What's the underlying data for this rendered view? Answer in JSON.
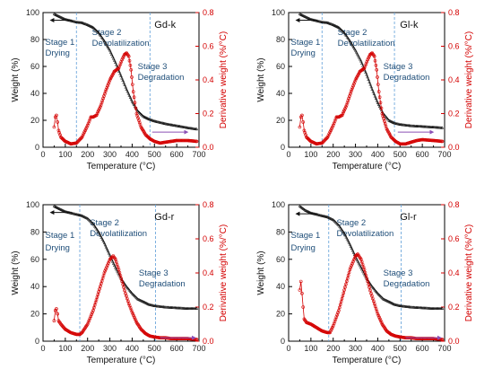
{
  "figure": {
    "colors": {
      "weight": "#111111",
      "derivative": "#d40000",
      "stage_lines": "#6fa8dc",
      "stage_text": "#1f4e79",
      "arrow_weight": "#111111",
      "arrow_derivative": "#8b4fb5",
      "axis": "#000000"
    }
  },
  "chart_data": [
    {
      "type": "line",
      "title": "Gd-k",
      "xlabel": "Temperature (°C)",
      "ylabel": "Weight (%)",
      "y2label": "Derivative weight (%/°C)",
      "xlim": [
        0,
        700
      ],
      "ylim": [
        0,
        100
      ],
      "y2lim": [
        0,
        0.8
      ],
      "xticks": [
        "0",
        "100",
        "200",
        "300",
        "400",
        "500",
        "600",
        "700"
      ],
      "yticks": [
        "0",
        "20",
        "40",
        "60",
        "80",
        "100"
      ],
      "y2ticks": [
        "0.0",
        "0.2",
        "0.4",
        "0.6",
        "0.8"
      ],
      "stage_boundaries": [
        150,
        480
      ],
      "stage_labels": [
        {
          "line1": "Stage 1",
          "line2": "Drying"
        },
        {
          "line1": "Stage 2",
          "line2": "Devolatilization"
        },
        {
          "line1": "Stage 3",
          "line2": "Degradation"
        }
      ],
      "series": [
        {
          "axis": "left",
          "x": [
            50,
            75,
            100,
            125,
            150,
            175,
            200,
            225,
            250,
            275,
            300,
            325,
            350,
            375,
            400,
            425,
            450,
            475,
            500,
            550,
            600,
            650,
            690
          ],
          "y": [
            99,
            97,
            95,
            94,
            93,
            92.5,
            91,
            89,
            85,
            79,
            72,
            63,
            53,
            43,
            34,
            27,
            23,
            21,
            19.5,
            17.5,
            16,
            14.5,
            13.5
          ]
        },
        {
          "axis": "right",
          "x": [
            50,
            55,
            60,
            65,
            70,
            80,
            100,
            125,
            150,
            175,
            200,
            215,
            225,
            240,
            260,
            280,
            300,
            320,
            340,
            355,
            365,
            375,
            385,
            395,
            405,
            420,
            440,
            460,
            480,
            500,
            525,
            550,
            575,
            600,
            650,
            690
          ],
          "y": [
            0.12,
            0.18,
            0.19,
            0.15,
            0.1,
            0.06,
            0.035,
            0.02,
            0.025,
            0.06,
            0.13,
            0.18,
            0.18,
            0.19,
            0.25,
            0.33,
            0.4,
            0.45,
            0.47,
            0.52,
            0.55,
            0.56,
            0.54,
            0.46,
            0.33,
            0.2,
            0.12,
            0.075,
            0.05,
            0.035,
            0.025,
            0.03,
            0.035,
            0.04,
            0.04,
            0.035
          ]
        }
      ]
    },
    {
      "type": "line",
      "title": "Gl-k",
      "xlabel": "Temperature (°C)",
      "ylabel": "Weight (%)",
      "y2label": "Derivative weight (%/°C)",
      "xlim": [
        0,
        700
      ],
      "ylim": [
        0,
        100
      ],
      "y2lim": [
        0,
        0.8
      ],
      "xticks": [
        "0",
        "100",
        "200",
        "300",
        "400",
        "500",
        "600",
        "700"
      ],
      "yticks": [
        "0",
        "20",
        "40",
        "60",
        "80",
        "100"
      ],
      "y2ticks": [
        "0.0",
        "0.2",
        "0.4",
        "0.6",
        "0.8"
      ],
      "stage_boundaries": [
        150,
        475
      ],
      "stage_labels": [
        {
          "line1": "Stage 1",
          "line2": "Drying"
        },
        {
          "line1": "Stage 2",
          "line2": "Devolatilization"
        },
        {
          "line1": "Stage 3",
          "line2": "Degradation"
        }
      ],
      "series": [
        {
          "axis": "left",
          "x": [
            50,
            75,
            100,
            125,
            150,
            175,
            200,
            225,
            250,
            275,
            300,
            325,
            350,
            375,
            400,
            425,
            450,
            475,
            500,
            550,
            600,
            650,
            690
          ],
          "y": [
            99,
            97,
            95,
            94,
            93,
            92.5,
            91,
            89,
            85,
            79,
            72,
            64,
            54,
            43,
            33,
            25,
            20,
            18,
            17,
            16,
            15.5,
            15,
            14.5
          ]
        },
        {
          "axis": "right",
          "x": [
            50,
            55,
            60,
            65,
            70,
            80,
            100,
            125,
            150,
            175,
            200,
            215,
            225,
            240,
            260,
            280,
            300,
            320,
            340,
            355,
            365,
            375,
            385,
            395,
            405,
            420,
            440,
            460,
            480,
            500,
            525,
            550,
            575,
            600,
            650,
            690
          ],
          "y": [
            0.12,
            0.18,
            0.19,
            0.15,
            0.1,
            0.06,
            0.035,
            0.02,
            0.025,
            0.06,
            0.13,
            0.18,
            0.18,
            0.19,
            0.25,
            0.33,
            0.4,
            0.45,
            0.47,
            0.52,
            0.55,
            0.56,
            0.54,
            0.46,
            0.33,
            0.2,
            0.11,
            0.06,
            0.035,
            0.02,
            0.02,
            0.03,
            0.04,
            0.045,
            0.04,
            0.035
          ]
        }
      ]
    },
    {
      "type": "line",
      "title": "Gd-r",
      "xlabel": "Temperature (°C)",
      "ylabel": "Weight (%)",
      "y2label": "Derivative weight (%/°C)",
      "xlim": [
        0,
        700
      ],
      "ylim": [
        0,
        100
      ],
      "y2lim": [
        0,
        0.8
      ],
      "xticks": [
        "0",
        "100",
        "200",
        "300",
        "400",
        "500",
        "600",
        "700"
      ],
      "yticks": [
        "0",
        "20",
        "40",
        "60",
        "80",
        "100"
      ],
      "y2ticks": [
        "0.0",
        "0.2",
        "0.4",
        "0.6",
        "0.8"
      ],
      "stage_boundaries": [
        165,
        505
      ],
      "stage_labels": [
        {
          "line1": "Stage 1",
          "line2": "Drying"
        },
        {
          "line1": "Stage 2",
          "line2": "Devolatilization"
        },
        {
          "line1": "Stage 3",
          "line2": "Degradation"
        }
      ],
      "series": [
        {
          "axis": "left",
          "x": [
            50,
            75,
            100,
            125,
            150,
            175,
            200,
            225,
            250,
            275,
            300,
            325,
            350,
            375,
            400,
            425,
            450,
            475,
            500,
            550,
            600,
            650,
            690
          ],
          "y": [
            99,
            97,
            95,
            94,
            93,
            92,
            90,
            86,
            80,
            72,
            63,
            54,
            46,
            40,
            35,
            31,
            29,
            27,
            26,
            25,
            24.5,
            24,
            24
          ]
        },
        {
          "axis": "right",
          "x": [
            50,
            55,
            60,
            65,
            70,
            80,
            100,
            125,
            150,
            165,
            175,
            200,
            225,
            250,
            275,
            300,
            315,
            325,
            340,
            355,
            370,
            385,
            400,
            420,
            440,
            460,
            480,
            500,
            525,
            550,
            575,
            600,
            650,
            690
          ],
          "y": [
            0.12,
            0.18,
            0.19,
            0.16,
            0.12,
            0.1,
            0.07,
            0.05,
            0.04,
            0.04,
            0.05,
            0.1,
            0.18,
            0.29,
            0.4,
            0.48,
            0.5,
            0.48,
            0.42,
            0.35,
            0.28,
            0.22,
            0.17,
            0.11,
            0.07,
            0.045,
            0.03,
            0.025,
            0.02,
            0.02,
            0.015,
            0.015,
            0.015,
            0.01
          ]
        }
      ]
    },
    {
      "type": "line",
      "title": "Gl-r",
      "xlabel": "Temperature (°C)",
      "ylabel": "Weight (%)",
      "y2label": "Derivative weight (%/°C)",
      "xlim": [
        0,
        700
      ],
      "ylim": [
        0,
        100
      ],
      "y2lim": [
        0,
        0.8
      ],
      "xticks": [
        "0",
        "100",
        "200",
        "300",
        "400",
        "500",
        "600",
        "700"
      ],
      "yticks": [
        "0",
        "20",
        "40",
        "60",
        "80",
        "100"
      ],
      "y2ticks": [
        "0.0",
        "0.2",
        "0.4",
        "0.6",
        "0.8"
      ],
      "stage_boundaries": [
        180,
        505
      ],
      "stage_labels": [
        {
          "line1": "Stage 1",
          "line2": "Drying"
        },
        {
          "line1": "Stage 2",
          "line2": "Devolatilization"
        },
        {
          "line1": "Stage 3",
          "line2": "Degradation"
        }
      ],
      "series": [
        {
          "axis": "left",
          "x": [
            50,
            75,
            100,
            125,
            150,
            175,
            200,
            225,
            250,
            275,
            300,
            325,
            350,
            375,
            400,
            425,
            450,
            475,
            500,
            550,
            600,
            650,
            690
          ],
          "y": [
            99,
            96,
            94,
            93,
            92,
            91,
            89,
            85,
            79,
            71,
            62,
            54,
            46,
            40,
            35,
            31,
            29,
            27,
            26,
            25,
            24.5,
            24,
            24
          ]
        },
        {
          "axis": "right",
          "x": [
            50,
            55,
            60,
            65,
            70,
            80,
            100,
            125,
            150,
            175,
            185,
            200,
            225,
            250,
            275,
            300,
            310,
            325,
            340,
            355,
            370,
            385,
            400,
            420,
            440,
            460,
            480,
            500,
            525,
            550,
            575,
            600,
            650,
            690
          ],
          "y": [
            0.3,
            0.35,
            0.28,
            0.2,
            0.13,
            0.11,
            0.1,
            0.08,
            0.06,
            0.05,
            0.05,
            0.09,
            0.18,
            0.3,
            0.42,
            0.5,
            0.51,
            0.48,
            0.42,
            0.35,
            0.28,
            0.22,
            0.16,
            0.1,
            0.06,
            0.04,
            0.03,
            0.025,
            0.02,
            0.02,
            0.015,
            0.015,
            0.015,
            0.01
          ]
        }
      ]
    }
  ]
}
